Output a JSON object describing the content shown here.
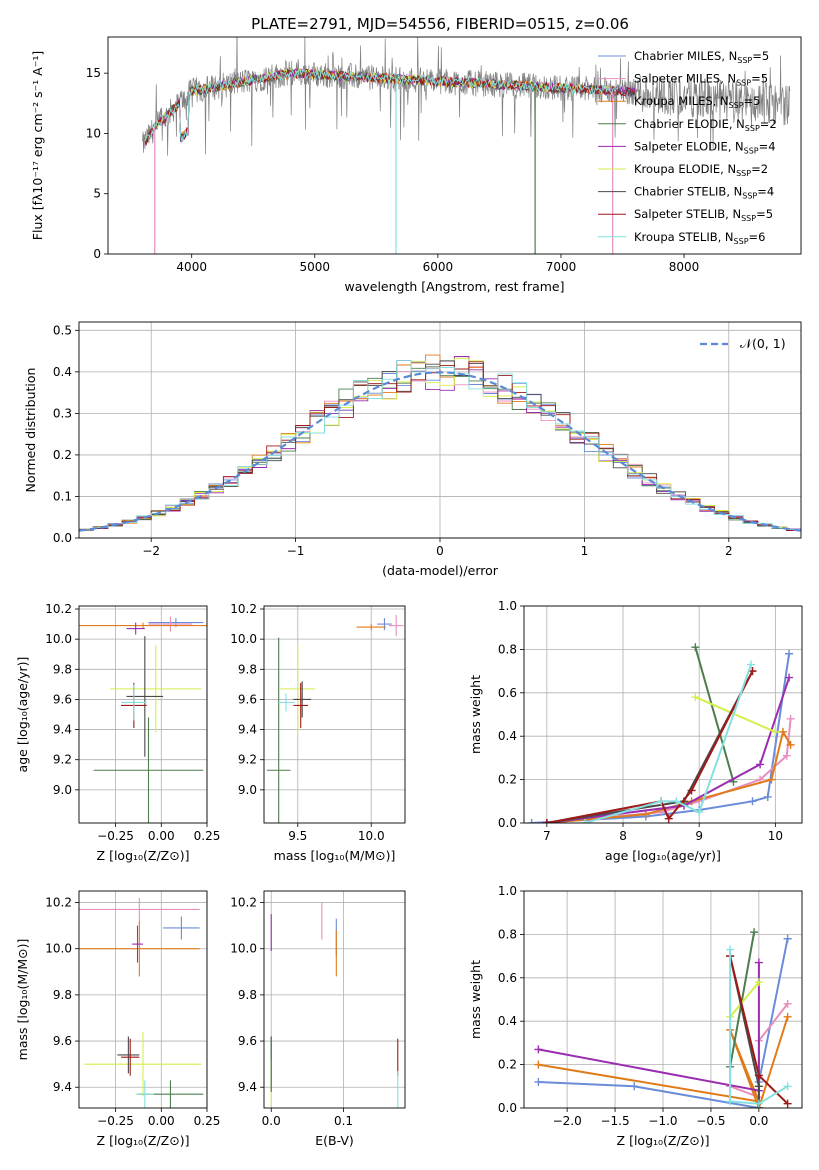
{
  "title": "PLATE=2791, MJD=54556, FIBERID=0515, z=0.06",
  "colors": {
    "Chabrier MILES": "#6b8cd9",
    "Salpeter MILES": "#e68fbf",
    "Kroupa MILES": "#e07b1a",
    "Chabrier ELODIE": "#4d7d4d",
    "Salpeter ELODIE": "#9a2db0",
    "Kroupa ELODIE": "#d4ee4a",
    "Chabrier STELIB": "#4a4a4a",
    "Salpeter STELIB": "#a01818",
    "Kroupa STELIB": "#86e0e0"
  },
  "chart_data": [
    {
      "type": "line",
      "id": "spectrum",
      "xlabel": "wavelength [Angstrom, rest frame]",
      "ylabel": "Flux [fλ10⁻¹⁷ erg cm⁻² s⁻¹ A⁻¹]",
      "xlim": [
        3320,
        8950
      ],
      "ylim": [
        0,
        18
      ],
      "xticks": [
        "4000",
        "5000",
        "6000",
        "7000",
        "8000"
      ],
      "yticks": [
        "0",
        "5",
        "10",
        "15"
      ],
      "legend_position": "top-right",
      "data_range": [
        3600,
        8860
      ],
      "legend": [
        {
          "series": "Chabrier MILES",
          "label": "Chabrier MILES, N",
          "sub": "SSP",
          "tail": "=5"
        },
        {
          "series": "Salpeter MILES",
          "label": "Salpeter MILES, N",
          "sub": "SSP",
          "tail": "=5"
        },
        {
          "series": "Kroupa MILES",
          "label": "Kroupa MILES, N",
          "sub": "SSP",
          "tail": "=5"
        },
        {
          "series": "Chabrier ELODIE",
          "label": "Chabrier ELODIE, N",
          "sub": "SSP",
          "tail": "=2"
        },
        {
          "series": "Salpeter ELODIE",
          "label": "Salpeter ELODIE, N",
          "sub": "SSP",
          "tail": "=4"
        },
        {
          "series": "Kroupa ELODIE",
          "label": "Kroupa ELODIE, N",
          "sub": "SSP",
          "tail": "=2"
        },
        {
          "series": "Chabrier STELIB",
          "label": "Chabrier STELIB, N",
          "sub": "SSP",
          "tail": "=4"
        },
        {
          "series": "Salpeter STELIB",
          "label": "Salpeter STELIB, N",
          "sub": "SSP",
          "tail": "=5"
        },
        {
          "series": "Kroupa STELIB",
          "label": "Kroupa STELIB, N",
          "sub": "SSP",
          "tail": "=6"
        }
      ]
    },
    {
      "type": "bar",
      "id": "residuals",
      "xlabel": "(data-model)/error",
      "ylabel": "Normed distribution",
      "xlim": [
        -2.5,
        2.5
      ],
      "ylim": [
        0,
        0.52
      ],
      "xticks": [
        "−2",
        "−1",
        "0",
        "1",
        "2"
      ],
      "yticks": [
        "0.0",
        "0.1",
        "0.2",
        "0.3",
        "0.4",
        "0.5"
      ],
      "legend_label": "𝒩(0, 1)",
      "gaussian_mean": 0,
      "gaussian_sigma": 1,
      "bin_width": 0.1
    },
    {
      "type": "scatter",
      "id": "z-age",
      "xlabel": "Z [log₁₀(Z/Z⊙)]",
      "ylabel": "age  [log₁₀(age/yr)]",
      "xlim": [
        -0.45,
        0.25
      ],
      "ylim": [
        8.78,
        10.22
      ],
      "xticks": [
        "−0.25",
        "0.00",
        "0.25"
      ],
      "yticks": [
        "9.0",
        "9.2",
        "9.4",
        "9.6",
        "9.8",
        "10.0",
        "10.2"
      ],
      "points": [
        {
          "series": "Chabrier MILES",
          "x": 0.08,
          "y": 10.11,
          "xerr": 0.15,
          "yerr": 0.03
        },
        {
          "series": "Salpeter MILES",
          "x": 0.05,
          "y": 10.1,
          "xerr": 0.12,
          "yerr": 0.05
        },
        {
          "series": "Kroupa MILES",
          "x": -0.1,
          "y": 10.09,
          "xerr": 0.35,
          "yerr": 0.02
        },
        {
          "series": "Salpeter ELODIE",
          "x": -0.14,
          "y": 10.07,
          "xerr": 0.05,
          "yerr": 0.04
        },
        {
          "series": "Kroupa ELODIE",
          "x": -0.03,
          "y": 9.67,
          "xerr": 0.25,
          "yerr": 0.29
        },
        {
          "series": "Chabrier ELODIE",
          "x": -0.07,
          "y": 9.13,
          "xerr": 0.3,
          "yerr": 0.35
        },
        {
          "series": "Chabrier STELIB",
          "x": -0.09,
          "y": 9.62,
          "xerr": 0.1,
          "yerr": 0.4
        },
        {
          "series": "Salpeter STELIB",
          "x": -0.15,
          "y": 9.56,
          "xerr": 0.07,
          "yerr": 0.15
        },
        {
          "series": "Kroupa STELIB",
          "x": -0.15,
          "y": 9.58,
          "xerr": 0.07,
          "yerr": 0.12
        }
      ]
    },
    {
      "type": "scatter",
      "id": "mass-age",
      "xlabel": "mass [log₁₀(M/M⊙)]",
      "ylabel": "",
      "xlim": [
        9.27,
        10.23
      ],
      "ylim": [
        8.78,
        10.22
      ],
      "xticks": [
        "9.5",
        "10.0"
      ],
      "yticks": [
        "9.0",
        "9.2",
        "9.4",
        "9.6",
        "9.8",
        "10.0",
        "10.2"
      ],
      "points": [
        {
          "series": "Chabrier MILES",
          "x": 10.09,
          "y": 10.1,
          "xerr": 0.05,
          "yerr": 0.04
        },
        {
          "series": "Salpeter MILES",
          "x": 10.17,
          "y": 10.09,
          "xerr": 0.05,
          "yerr": 0.07
        },
        {
          "series": "Kroupa MILES",
          "x": 10.0,
          "y": 10.08,
          "xerr": 0.1,
          "yerr": 0.02
        },
        {
          "series": "Kroupa ELODIE",
          "x": 9.5,
          "y": 9.67,
          "xerr": 0.12,
          "yerr": 0.29
        },
        {
          "series": "Chabrier ELODIE",
          "x": 9.37,
          "y": 9.13,
          "xerr": 0.08,
          "yerr": 0.88
        },
        {
          "series": "Chabrier STELIB",
          "x": 9.53,
          "y": 9.6,
          "xerr": 0.06,
          "yerr": 0.12
        },
        {
          "series": "Salpeter STELIB",
          "x": 9.52,
          "y": 9.56,
          "xerr": 0.05,
          "yerr": 0.15
        },
        {
          "series": "Kroupa STELIB",
          "x": 9.42,
          "y": 9.58,
          "xerr": 0.06,
          "yerr": 0.06
        }
      ]
    },
    {
      "type": "line",
      "id": "age-weight",
      "xlabel": "age  [log₁₀(age/yr)]",
      "ylabel": "mass weight",
      "xlim": [
        6.7,
        10.35
      ],
      "ylim": [
        0,
        1
      ],
      "xticks": [
        "7",
        "8",
        "9",
        "10"
      ],
      "yticks": [
        "0.0",
        "0.2",
        "0.4",
        "0.6",
        "0.8",
        "1.0"
      ],
      "series": [
        {
          "name": "Chabrier MILES",
          "x": [
            6.8,
            8.3,
            9.0,
            9.7,
            9.9,
            10.18
          ],
          "y": [
            0.0,
            0.03,
            0.06,
            0.1,
            0.12,
            0.78
          ]
        },
        {
          "name": "Salpeter MILES",
          "x": [
            7.0,
            8.5,
            9.0,
            9.8,
            10.15,
            10.2
          ],
          "y": [
            0.0,
            0.05,
            0.1,
            0.2,
            0.31,
            0.48
          ]
        },
        {
          "name": "Kroupa MILES",
          "x": [
            7.0,
            8.3,
            8.9,
            9.95,
            10.1,
            10.2
          ],
          "y": [
            0.0,
            0.04,
            0.1,
            0.2,
            0.42,
            0.36
          ]
        },
        {
          "name": "Chabrier ELODIE",
          "x": [
            8.95,
            9.45
          ],
          "y": [
            0.81,
            0.19
          ]
        },
        {
          "name": "Salpeter ELODIE",
          "x": [
            7.0,
            8.8,
            9.8,
            10.18
          ],
          "y": [
            0.0,
            0.08,
            0.27,
            0.67
          ]
        },
        {
          "name": "Kroupa ELODIE",
          "x": [
            8.95,
            10.0
          ],
          "y": [
            0.58,
            0.42
          ]
        },
        {
          "name": "Chabrier STELIB",
          "x": [
            7.0,
            8.8,
            9.7
          ],
          "y": [
            0.0,
            0.1,
            0.7
          ]
        },
        {
          "name": "Salpeter STELIB",
          "x": [
            7.0,
            8.5,
            8.6,
            8.9,
            9.7
          ],
          "y": [
            0.0,
            0.1,
            0.02,
            0.15,
            0.7
          ]
        },
        {
          "name": "Kroupa STELIB",
          "x": [
            7.5,
            8.5,
            8.7,
            9.0,
            9.68
          ],
          "y": [
            0.0,
            0.1,
            0.1,
            0.05,
            0.73
          ]
        }
      ]
    },
    {
      "type": "scatter",
      "id": "z-mass",
      "xlabel": "Z [log₁₀(Z/Z⊙)]",
      "ylabel": "mass [log₁₀(M/M⊙)]",
      "xlim": [
        -0.45,
        0.25
      ],
      "ylim": [
        9.31,
        10.25
      ],
      "xticks": [
        "−0.25",
        "0.00",
        "0.25"
      ],
      "yticks": [
        "9.4",
        "9.6",
        "9.8",
        "10.0",
        "10.2"
      ],
      "points": [
        {
          "series": "Salpeter MILES",
          "x": -0.12,
          "y": 10.17,
          "xerr": 0.33,
          "yerr": 0.05
        },
        {
          "series": "Chabrier MILES",
          "x": 0.11,
          "y": 10.09,
          "xerr": 0.1,
          "yerr": 0.05
        },
        {
          "series": "Kroupa MILES",
          "x": -0.12,
          "y": 10.0,
          "xerr": 0.33,
          "yerr": 0.12
        },
        {
          "series": "Salpeter ELODIE",
          "x": -0.13,
          "y": 10.02,
          "xerr": 0.03,
          "yerr": 0.08
        },
        {
          "series": "Kroupa ELODIE",
          "x": -0.1,
          "y": 9.5,
          "xerr": 0.32,
          "yerr": 0.14
        },
        {
          "series": "Chabrier ELODIE",
          "x": 0.05,
          "y": 9.37,
          "xerr": 0.18,
          "yerr": 0.06
        },
        {
          "series": "Chabrier STELIB",
          "x": -0.18,
          "y": 9.54,
          "xerr": 0.06,
          "yerr": 0.08
        },
        {
          "series": "Salpeter STELIB",
          "x": -0.17,
          "y": 9.53,
          "xerr": 0.05,
          "yerr": 0.08
        },
        {
          "series": "Kroupa STELIB",
          "x": -0.09,
          "y": 9.37,
          "xerr": 0.05,
          "yerr": 0.06
        }
      ]
    },
    {
      "type": "scatter",
      "id": "ebv-mass",
      "xlabel": "E(B-V)",
      "ylabel": "",
      "xlim": [
        -0.01,
        0.185
      ],
      "ylim": [
        9.31,
        10.25
      ],
      "xticks": [
        "0.0",
        "0.1"
      ],
      "yticks": [
        "9.4",
        "9.6",
        "9.8",
        "10.0",
        "10.2"
      ],
      "points": [
        {
          "series": "Salpeter ELODIE",
          "x": 0.0,
          "y": 10.07,
          "xerr": 0.0,
          "yerr": 0.08
        },
        {
          "series": "Salpeter MILES",
          "x": 0.07,
          "y": 10.12,
          "xerr": 0.0,
          "yerr": 0.08
        },
        {
          "series": "Chabrier MILES",
          "x": 0.09,
          "y": 10.05,
          "xerr": 0.0,
          "yerr": 0.08
        },
        {
          "series": "Kroupa MILES",
          "x": 0.09,
          "y": 9.98,
          "xerr": 0.0,
          "yerr": 0.1
        },
        {
          "series": "Chabrier STELIB",
          "x": 0.0,
          "y": 9.5,
          "xerr": 0.0,
          "yerr": 0.12
        },
        {
          "series": "Kroupa ELODIE",
          "x": 0.0,
          "y": 9.42,
          "xerr": 0.0,
          "yerr": 0.1
        },
        {
          "series": "Chabrier ELODIE",
          "x": 0.0,
          "y": 9.5,
          "xerr": 0.0,
          "yerr": 0.12
        },
        {
          "series": "Salpeter STELIB",
          "x": 0.175,
          "y": 9.53,
          "xerr": 0.0,
          "yerr": 0.08
        },
        {
          "series": "Kroupa STELIB",
          "x": 0.175,
          "y": 9.39,
          "xerr": 0.0,
          "yerr": 0.08
        }
      ]
    },
    {
      "type": "line",
      "id": "z-weight",
      "xlabel": "Z [log₁₀(Z/Z⊙)]",
      "ylabel": "mass weight",
      "xlim": [
        -2.45,
        0.45
      ],
      "ylim": [
        0,
        1
      ],
      "xticks": [
        "−2.0",
        "−1.5",
        "−1.0",
        "−0.5",
        "0.0"
      ],
      "yticks": [
        "0.0",
        "0.2",
        "0.4",
        "0.6",
        "0.8",
        "1.0"
      ],
      "series": [
        {
          "name": "Chabrier MILES",
          "x": [
            -2.3,
            -1.3,
            0.0,
            0.0,
            0.3
          ],
          "y": [
            0.12,
            0.1,
            0.0,
            0.12,
            0.78
          ]
        },
        {
          "name": "Salpeter MILES",
          "x": [
            -0.3,
            0.0,
            0.0,
            0.3
          ],
          "y": [
            0.1,
            0.05,
            0.31,
            0.48
          ]
        },
        {
          "name": "Kroupa MILES",
          "x": [
            -2.3,
            0.0,
            -0.3,
            0.0,
            0.3
          ],
          "y": [
            0.2,
            0.03,
            0.36,
            0.0,
            0.42
          ]
        },
        {
          "name": "Chabrier ELODIE",
          "x": [
            -0.05,
            -0.3
          ],
          "y": [
            0.81,
            0.19
          ]
        },
        {
          "name": "Salpeter ELODIE",
          "x": [
            -2.3,
            0.0,
            0.0
          ],
          "y": [
            0.27,
            0.08,
            0.67
          ]
        },
        {
          "name": "Kroupa ELODIE",
          "x": [
            0.0,
            -0.3
          ],
          "y": [
            0.58,
            0.42
          ]
        },
        {
          "name": "Chabrier STELIB",
          "x": [
            -0.3,
            0.0,
            0.0
          ],
          "y": [
            0.7,
            0.1,
            0.0
          ]
        },
        {
          "name": "Salpeter STELIB",
          "x": [
            -0.3,
            0.0,
            0.3
          ],
          "y": [
            0.7,
            0.15,
            0.02
          ]
        },
        {
          "name": "Kroupa STELIB",
          "x": [
            -0.3,
            -0.3,
            0.0,
            0.3
          ],
          "y": [
            0.73,
            0.03,
            0.02,
            0.1
          ]
        }
      ]
    }
  ]
}
